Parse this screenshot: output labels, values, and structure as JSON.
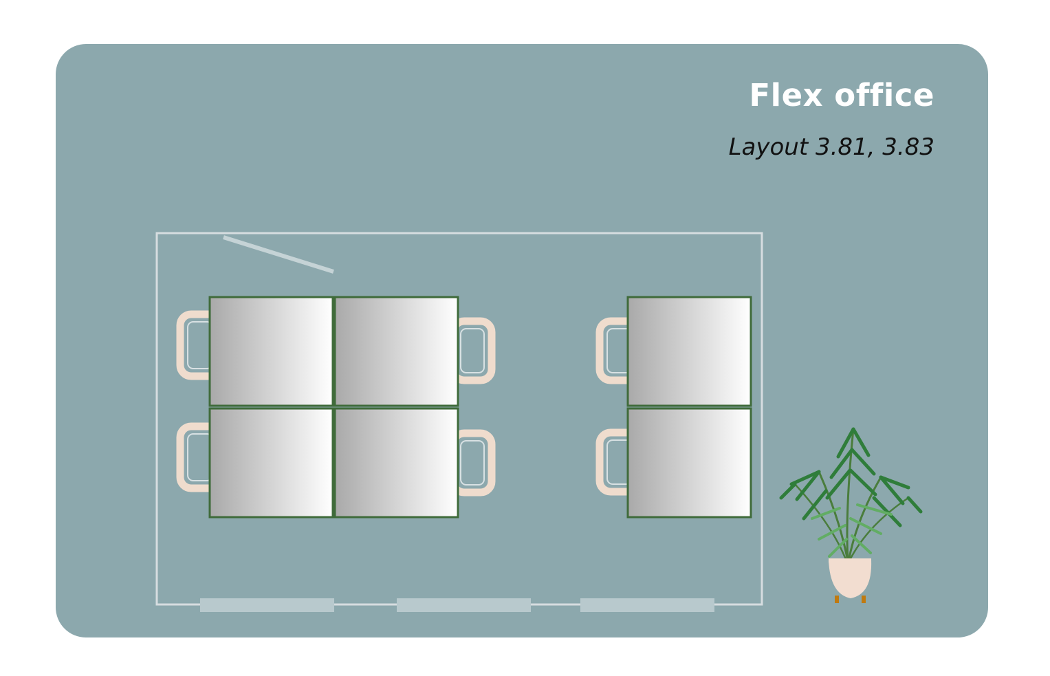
{
  "header": {
    "title": "Flex office",
    "subtitle": "Layout 3.81, 3.83"
  },
  "colors": {
    "background": "#8ca8ad",
    "title_text": "#ffffff",
    "room_outline": "#d6dde0",
    "window": "#b8c9cd",
    "desk_border": "#3f6b3a",
    "chair": "#efdccd",
    "plant_leaf": "#3d8a45",
    "pot": "#f2ddd0"
  },
  "floor_plan": {
    "desks": 6,
    "chairs": 6,
    "windows": 3,
    "door": "open",
    "plant": "potted-palm"
  }
}
